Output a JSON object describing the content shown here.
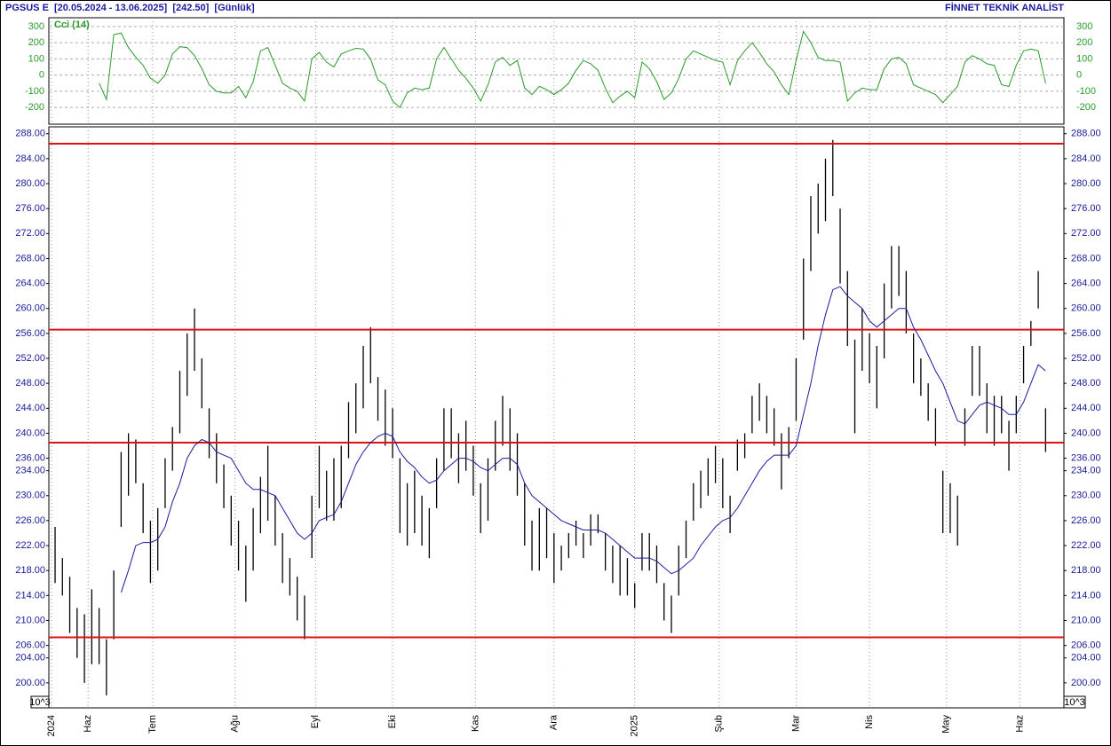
{
  "header": {
    "left": "PGSUS E  [20.05.2024 - 13.06.2025]  [242.50]  [Günlük]",
    "right": "FİNNET TEKNİK ANALİST"
  },
  "chart_data": [
    {
      "type": "line",
      "ylim": [
        -303,
        354
      ],
      "yticks": [
        300,
        200,
        100,
        0,
        -100,
        -200
      ],
      "grid": true,
      "series": [
        {
          "name": "Cci (14)",
          "color": "#2a9a2a",
          "values": [
            null,
            null,
            null,
            null,
            null,
            null,
            -50,
            -150,
            250,
            260,
            170,
            110,
            60,
            -20,
            -50,
            0,
            130,
            175,
            170,
            120,
            40,
            -60,
            -100,
            -110,
            -110,
            -70,
            -140,
            -40,
            150,
            170,
            60,
            -50,
            -80,
            -100,
            -160,
            100,
            140,
            80,
            50,
            130,
            150,
            165,
            160,
            100,
            -30,
            -60,
            -160,
            -200,
            -110,
            -80,
            -90,
            -80,
            100,
            170,
            100,
            30,
            -20,
            -80,
            -160,
            -60,
            80,
            110,
            60,
            90,
            -80,
            -120,
            -70,
            -90,
            -120,
            -90,
            -50,
            30,
            90,
            70,
            30,
            -80,
            -170,
            -130,
            -100,
            -140,
            80,
            40,
            -40,
            -150,
            -110,
            -20,
            100,
            150,
            130,
            110,
            90,
            80,
            -60,
            90,
            150,
            200,
            140,
            70,
            20,
            -60,
            -120,
            90,
            270,
            200,
            110,
            90,
            90,
            80,
            -160,
            -110,
            -80,
            -90,
            -90,
            40,
            100,
            110,
            70,
            -60,
            -80,
            -100,
            -120,
            -170,
            -120,
            -70,
            80,
            120,
            100,
            70,
            60,
            -60,
            -70,
            60,
            150,
            160,
            150,
            -50
          ]
        }
      ]
    },
    {
      "type": "ohlc",
      "xlim": [
        -0.85,
        137.5
      ],
      "xticks": [
        {
          "value": -0.5,
          "label": "2024"
        },
        {
          "value": 4.5,
          "label": "Haz"
        },
        {
          "value": 13.3,
          "label": "Tem"
        },
        {
          "value": 24.5,
          "label": "Ağu"
        },
        {
          "value": 35.5,
          "label": "Eyl"
        },
        {
          "value": 46,
          "label": "Eki"
        },
        {
          "value": 57.3,
          "label": "Kas"
        },
        {
          "value": 68,
          "label": "Ara"
        },
        {
          "value": 79,
          "label": "2025"
        },
        {
          "value": 90.5,
          "label": "Şub"
        },
        {
          "value": 101,
          "label": "Mar"
        },
        {
          "value": 111,
          "label": "Nis"
        },
        {
          "value": 121.5,
          "label": "May"
        },
        {
          "value": 131.5,
          "label": "Haz"
        }
      ],
      "ylim": [
        196,
        289.1
      ],
      "yticks": [
        {
          "value": 288,
          "label": "288.00"
        },
        {
          "value": 284,
          "label": "284.00"
        },
        {
          "value": 280,
          "label": "280.00"
        },
        {
          "value": 276,
          "label": "276.00"
        },
        {
          "value": 272,
          "label": "272.00"
        },
        {
          "value": 268,
          "label": "268.00"
        },
        {
          "value": 264,
          "label": "264.00"
        },
        {
          "value": 260,
          "label": "260.00"
        },
        {
          "value": 256,
          "label": "256.00"
        },
        {
          "value": 252,
          "label": "252.00"
        },
        {
          "value": 248,
          "label": "248.00"
        },
        {
          "value": 244,
          "label": "244.00"
        },
        {
          "value": 240,
          "label": "240.00"
        },
        {
          "value": 236,
          "label": "236.00"
        },
        {
          "value": 234,
          "label": "234.00"
        },
        {
          "value": 230,
          "label": "230.00"
        },
        {
          "value": 226,
          "label": "226.00"
        },
        {
          "value": 222,
          "label": "222.00"
        },
        {
          "value": 218,
          "label": "218.00"
        },
        {
          "value": 214,
          "label": "214.00"
        },
        {
          "value": 210,
          "label": "210.00"
        },
        {
          "value": 206,
          "label": "206.00"
        },
        {
          "value": 204,
          "label": "204.00"
        },
        {
          "value": 200,
          "label": "200.00"
        }
      ],
      "grid": "x",
      "scale_note": "10^3",
      "bars": {
        "color": "#000000",
        "high": [
          225,
          220,
          217,
          212,
          211,
          215,
          212,
          207,
          218,
          237,
          240,
          239,
          232,
          226,
          228,
          236,
          241,
          250,
          256,
          260,
          252,
          244,
          240,
          235,
          230,
          226,
          222,
          228,
          233,
          238,
          230,
          224,
          220,
          217,
          214,
          230,
          238,
          234,
          236,
          238,
          245,
          248,
          254,
          257,
          249,
          247,
          244,
          236,
          232,
          234,
          230,
          228,
          236,
          244,
          244,
          240,
          242,
          238,
          232,
          236,
          242,
          246,
          244,
          240,
          232,
          226,
          228,
          228,
          224,
          222,
          224,
          226,
          224,
          227,
          227,
          224,
          222,
          222,
          220,
          216,
          224,
          224,
          222,
          216,
          214,
          222,
          226,
          232,
          234,
          236,
          238,
          236,
          230,
          239,
          240,
          246,
          248,
          246,
          244,
          240,
          241,
          252,
          268,
          278,
          280,
          284,
          287,
          276,
          266,
          255,
          260,
          256,
          254,
          264,
          270,
          270,
          266,
          256,
          252,
          248,
          244,
          234,
          232,
          230,
          244,
          254,
          254,
          248,
          246,
          246,
          242,
          246,
          254,
          258,
          266,
          244
        ],
        "low": [
          216,
          214,
          208,
          204,
          200,
          203,
          203,
          198,
          207,
          225,
          230,
          232,
          224,
          216,
          218,
          228,
          234,
          240,
          246,
          250,
          244,
          236,
          232,
          228,
          222,
          218,
          213,
          218,
          224,
          226,
          222,
          216,
          214,
          210,
          207,
          220,
          228,
          226,
          226,
          228,
          236,
          240,
          244,
          248,
          242,
          238,
          236,
          224,
          222,
          224,
          222,
          220,
          228,
          234,
          236,
          232,
          234,
          230,
          224,
          226,
          234,
          238,
          234,
          230,
          222,
          218,
          218,
          220,
          216,
          218,
          220,
          222,
          220,
          222,
          224,
          218,
          216,
          214,
          214,
          212,
          218,
          218,
          216,
          210,
          208,
          214,
          220,
          226,
          228,
          230,
          232,
          228,
          224,
          234,
          236,
          240,
          242,
          240,
          238,
          231,
          236,
          242,
          255,
          266,
          272,
          274,
          278,
          264,
          254,
          240,
          250,
          248,
          244,
          252,
          260,
          262,
          256,
          248,
          246,
          242,
          238,
          224,
          224,
          222,
          238,
          246,
          246,
          240,
          238,
          240,
          234,
          240,
          248,
          254,
          260,
          237
        ]
      },
      "series": [
        {
          "color": "#1a1a9a",
          "values": [
            null,
            null,
            null,
            null,
            null,
            null,
            null,
            null,
            null,
            214.5,
            218,
            222,
            222.5,
            222.5,
            223,
            225,
            229,
            232,
            236,
            238,
            239,
            238.5,
            237,
            236.5,
            236,
            234,
            232,
            231,
            231,
            230.5,
            230,
            228,
            226,
            224,
            223,
            224,
            226,
            226.5,
            227,
            229,
            232,
            235,
            237,
            238.5,
            239.5,
            240,
            239.5,
            237,
            235.5,
            234.5,
            233,
            232,
            232.5,
            234,
            235,
            236,
            236,
            235.5,
            234.5,
            234,
            235,
            236,
            236,
            235,
            232,
            230,
            229,
            228,
            227,
            226,
            225.5,
            225,
            224.5,
            224.5,
            224.5,
            224,
            223,
            222,
            221,
            220,
            220,
            220,
            219.5,
            218.5,
            217.5,
            218,
            219,
            220,
            222,
            223.5,
            225,
            226,
            226.5,
            228,
            230,
            232,
            234,
            235.5,
            236.5,
            236.5,
            236.5,
            238,
            243,
            248,
            254,
            259,
            263,
            263.5,
            262,
            261,
            260,
            258,
            257,
            258,
            259,
            260,
            260,
            257,
            255,
            252.5,
            250,
            248,
            245,
            242,
            241.5,
            243,
            244.5,
            245,
            244.5,
            244,
            243,
            243,
            245,
            248,
            251,
            250
          ]
        }
      ],
      "hlines": {
        "color": "#e01010",
        "values": [
          286.4,
          256.6,
          238.5,
          207.3
        ]
      }
    }
  ]
}
